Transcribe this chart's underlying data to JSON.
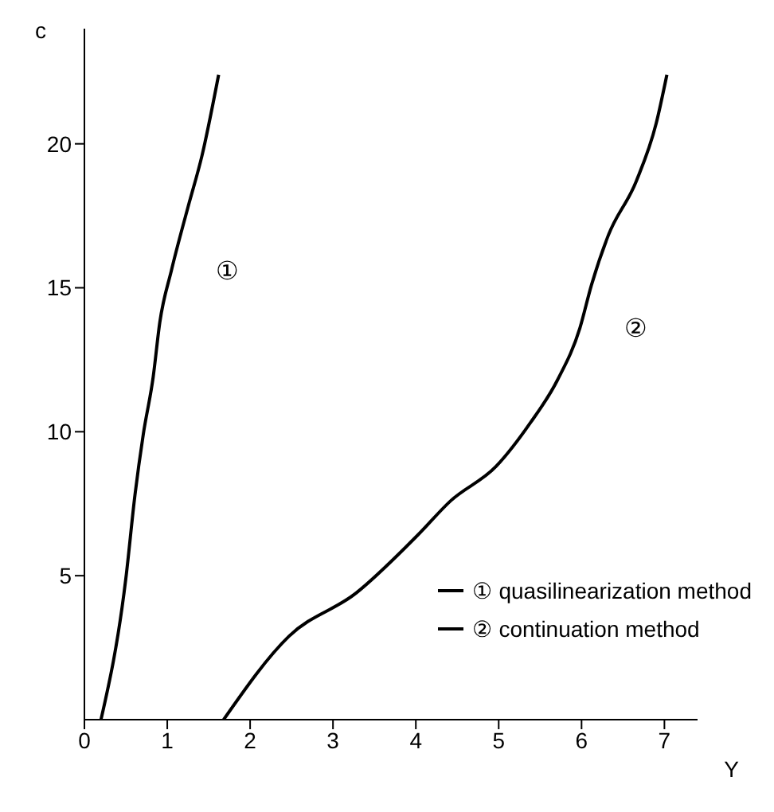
{
  "chart_data": {
    "type": "line",
    "xlabel": "Y",
    "ylabel": "c",
    "xlim": [
      0,
      7.4
    ],
    "ylim": [
      0,
      24
    ],
    "xticks": [
      0,
      1,
      2,
      3,
      4,
      5,
      6,
      7
    ],
    "yticks": [
      5,
      10,
      15,
      20
    ],
    "grid": false,
    "legend": "bottom right",
    "marker": "none",
    "line_style": "solid",
    "series": [
      {
        "name": "① quasilinearization method",
        "color": "#000000",
        "x": [
          0.2,
          0.5,
          0.61,
          0.71,
          0.83,
          0.91,
          1.05,
          1.25,
          1.42,
          1.62
        ],
        "values": [
          0,
          4.9,
          7.8,
          9.9,
          11.9,
          13.8,
          15.6,
          17.8,
          19.6,
          22.4
        ]
      },
      {
        "name": "② continuation method",
        "color": "#000000",
        "x": [
          1.68,
          2.47,
          3.28,
          4.02,
          4.42,
          4.97,
          5.38,
          5.71,
          5.98,
          6.12,
          6.32,
          6.66,
          6.9,
          7.03
        ],
        "values": [
          0,
          2.9,
          4.4,
          6.4,
          7.6,
          8.8,
          10.3,
          11.8,
          13.6,
          15.1,
          16.8,
          18.7,
          20.7,
          22.4
        ]
      }
    ],
    "annotations": [
      "①",
      "②"
    ]
  }
}
